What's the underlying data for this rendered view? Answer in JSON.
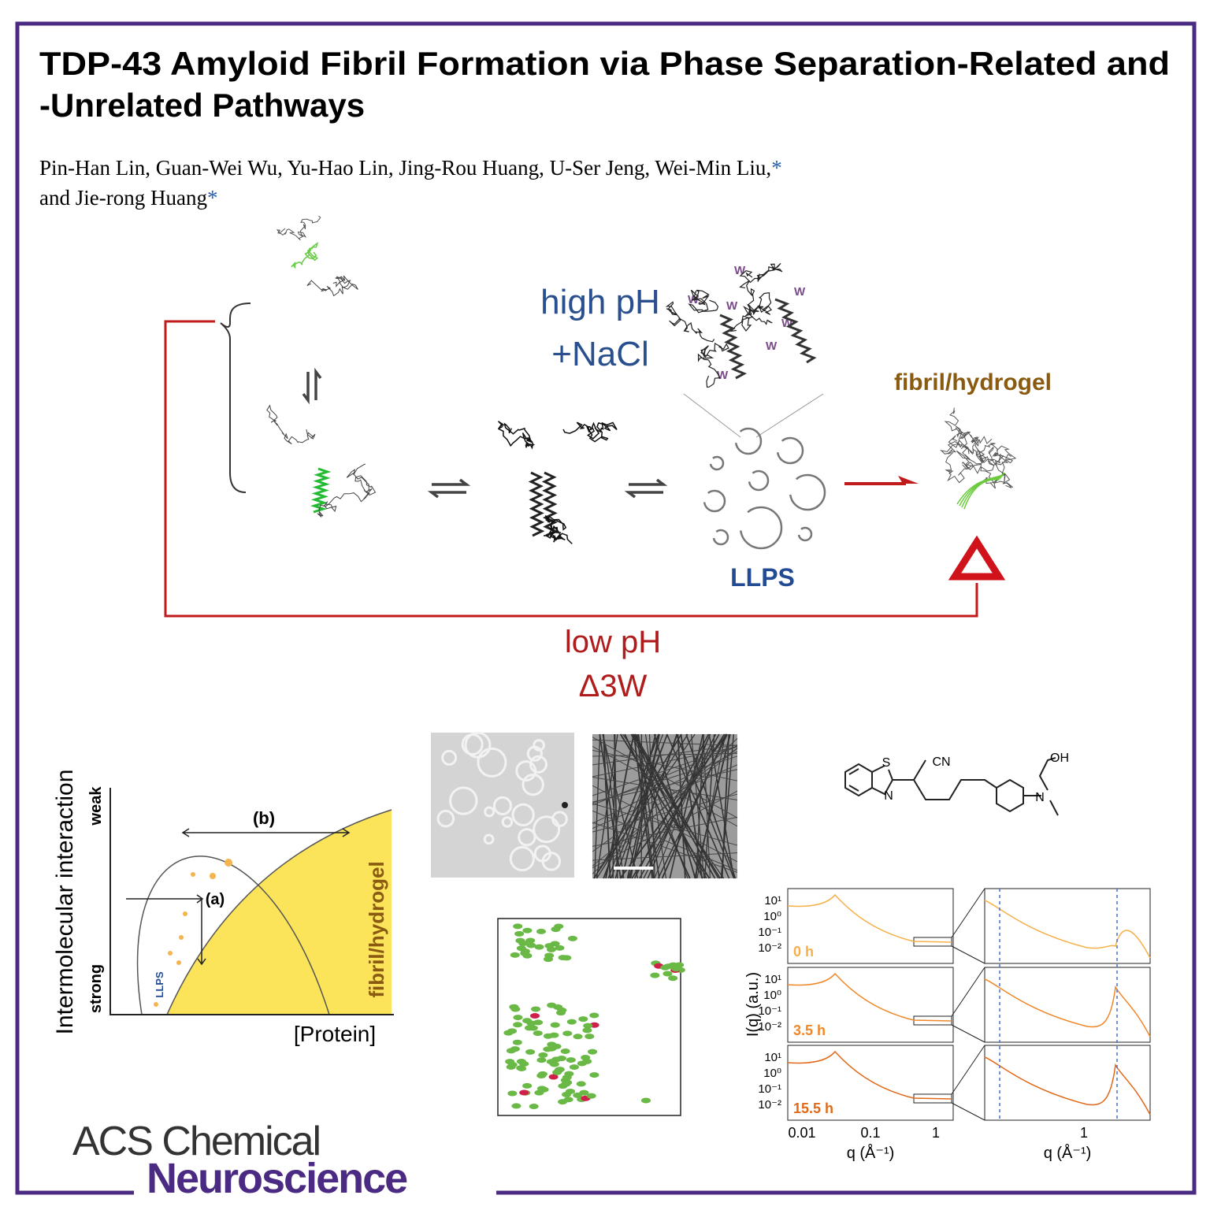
{
  "header": {
    "title": [
      "TDP-43 Amyloid Fibril Formation via Phase Separation-Related and",
      "-Unrelated Pathways"
    ],
    "authors": [
      "Pin-Han Lin, Guan-Wei Wu, Yu-Hao Lin, Jing-Rou Huang, U-Ser Jeng, Wei-Min Liu,",
      "and Jie-rong Huang"
    ],
    "corresponding_mark": "*"
  },
  "scheme": {
    "high_ph": "high pH",
    "nacl": "+NaCl",
    "w_label": "W",
    "fibril": "fibril/hydrogel",
    "llps": "LLPS",
    "low_ph": "low pH",
    "mutant": "Δ3W"
  },
  "phase_diagram": {
    "y_label": "Intermolecular interaction",
    "weak": "weak",
    "strong": "strong",
    "b": "(b)",
    "a": "(a)",
    "llps": "LLPS",
    "fibril": "fibril/hydrogel",
    "x_label": "[Protein]"
  },
  "structure": {
    "atoms": [
      "S",
      "CN",
      "N",
      "OH",
      "N"
    ]
  },
  "saxs": {
    "y_label": "I(q) (a.u.)",
    "x_label": "q (Å⁻¹)",
    "yticks": [
      "10¹",
      "10⁰",
      "10⁻¹",
      "10⁻²"
    ],
    "xticks_left": [
      "0.01",
      "0.1",
      "1"
    ],
    "xticks_right": [
      "1"
    ],
    "times": [
      "0 h",
      "3.5 h",
      "15.5 h"
    ]
  },
  "journal": {
    "line1": "ACS Chemical",
    "line2": "Neuroscience"
  }
}
